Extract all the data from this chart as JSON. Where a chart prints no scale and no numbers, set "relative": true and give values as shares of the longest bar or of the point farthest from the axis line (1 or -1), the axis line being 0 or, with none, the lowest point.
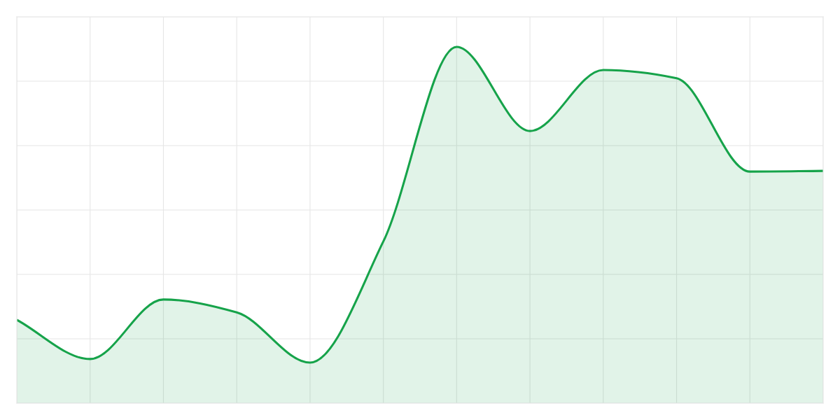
{
  "chart_data": {
    "type": "area",
    "relative": true,
    "grid": true,
    "legend": false,
    "marker": "none",
    "line_style": "solid",
    "categories": [
      null,
      null,
      null,
      null,
      null,
      null,
      null,
      null,
      null,
      null,
      null,
      null
    ],
    "series": [
      {
        "color": "#16a34a",
        "values": [
          0.234,
          0.124,
          0.291,
          0.255,
          0.114,
          0.454,
          1,
          0.764,
          0.935,
          0.912,
          0.65,
          0.652
        ]
      }
    ]
  }
}
